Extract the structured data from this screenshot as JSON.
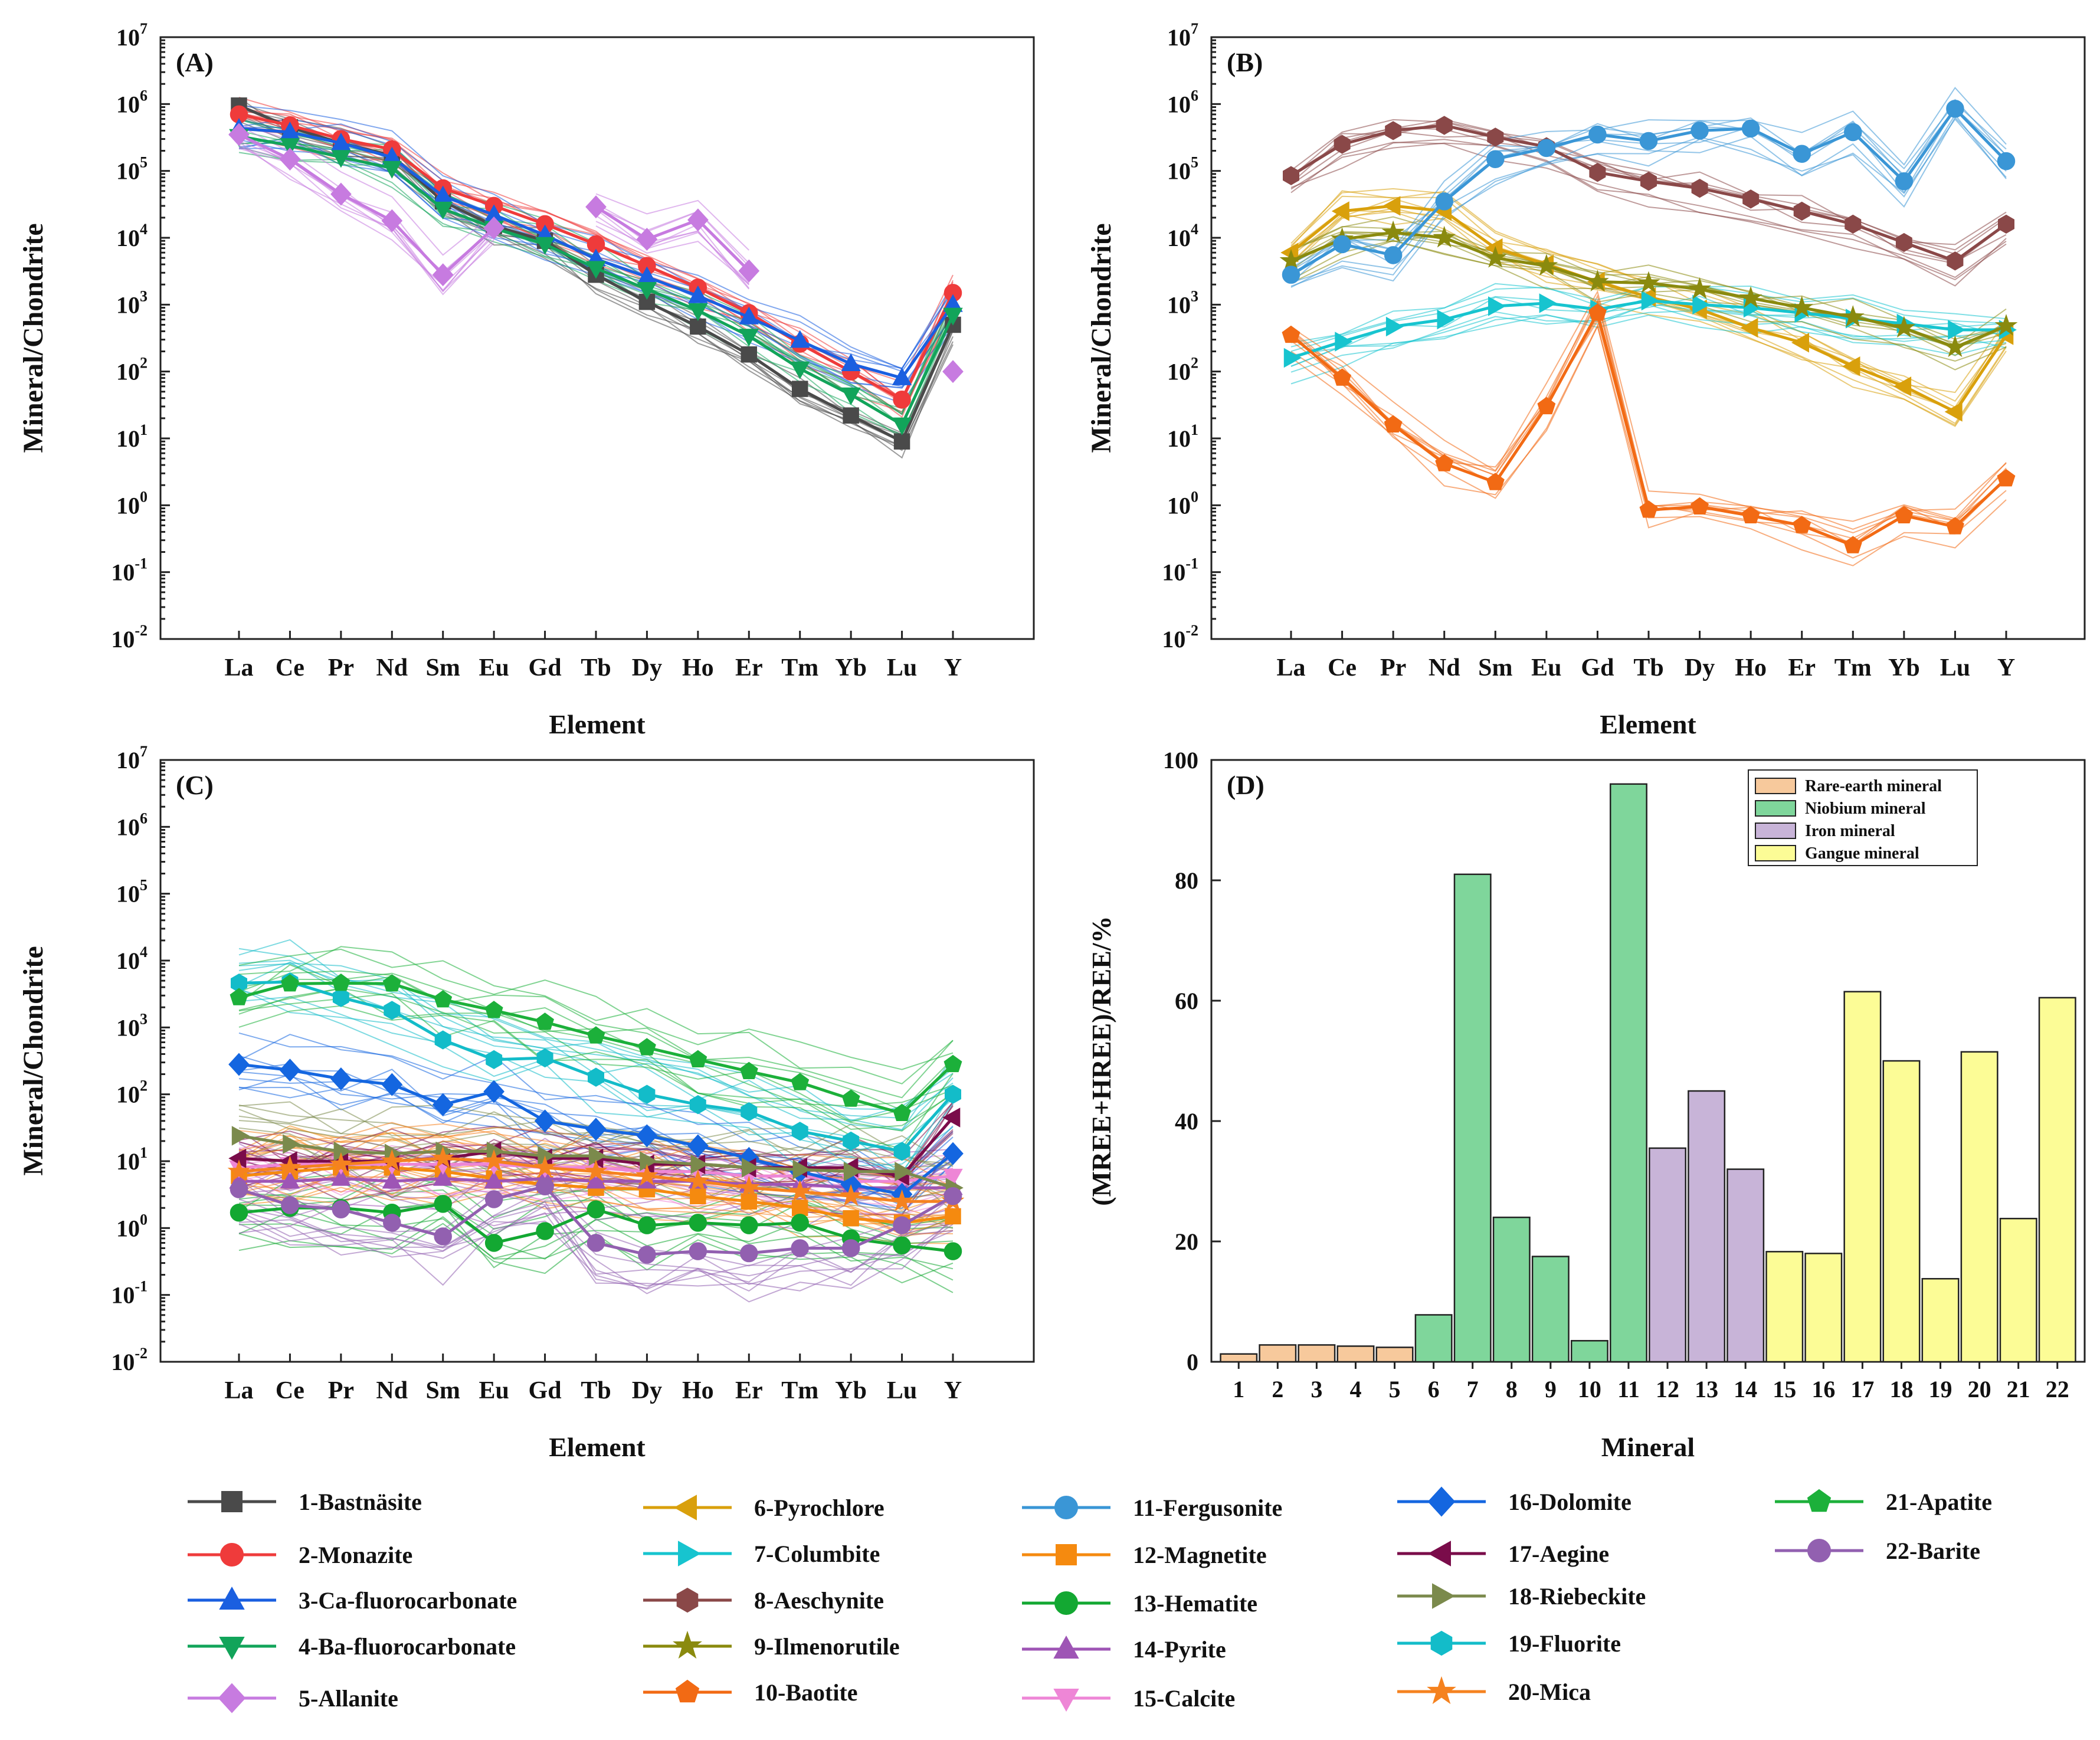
{
  "chart_data": [
    {
      "type": "line",
      "panel": "A",
      "title": "(A)",
      "xlabel": "Element",
      "ylabel": "Mineral/Chondrite",
      "yscale": "log",
      "ylim": [
        0.01,
        10000000
      ],
      "yticks": [
        {
          "b": "10",
          "e": "7"
        },
        {
          "b": "10",
          "e": "6"
        },
        {
          "b": "10",
          "e": "5"
        },
        {
          "b": "10",
          "e": "4"
        },
        {
          "b": "10",
          "e": "3"
        },
        {
          "b": "10",
          "e": "2"
        },
        {
          "b": "10",
          "e": "1"
        },
        {
          "b": "10",
          "e": "0"
        },
        {
          "b": "10",
          "e": "-1"
        },
        {
          "b": "10",
          "e": "-2"
        }
      ],
      "categories": [
        "La",
        "Ce",
        "Pr",
        "Nd",
        "Sm",
        "Eu",
        "Gd",
        "Tb",
        "Dy",
        "Ho",
        "Er",
        "Tm",
        "Yb",
        "Lu",
        "Y"
      ],
      "series": [
        {
          "id": 1,
          "values": [
            950000,
            450000,
            260000,
            170000,
            35000,
            15000,
            9000,
            2800,
            1100,
            470,
            180,
            55,
            22,
            9,
            500
          ]
        },
        {
          "id": 2,
          "values": [
            700000,
            480000,
            300000,
            210000,
            55000,
            30000,
            16000,
            8000,
            3800,
            1800,
            750,
            260,
            100,
            38,
            1500
          ]
        },
        {
          "id": 3,
          "values": [
            430000,
            380000,
            260000,
            160000,
            42000,
            22000,
            11000,
            4800,
            2600,
            1350,
            650,
            290,
            130,
            80,
            1000
          ]
        },
        {
          "id": 4,
          "values": [
            330000,
            240000,
            160000,
            110000,
            27000,
            14000,
            8000,
            3500,
            1700,
            820,
            340,
            110,
            45,
            16,
            700
          ]
        },
        {
          "id": 5,
          "values": [
            350000,
            150000,
            45000,
            18000,
            2800,
            14000,
            null,
            29000,
            9500,
            18500,
            3200,
            null,
            null,
            null,
            100
          ]
        }
      ]
    },
    {
      "type": "line",
      "panel": "B",
      "title": "(B)",
      "xlabel": "Element",
      "ylabel": "Mineral/Chondrite",
      "yscale": "log",
      "ylim": [
        0.01,
        10000000
      ],
      "yticks": [
        {
          "b": "10",
          "e": "7"
        },
        {
          "b": "10",
          "e": "6"
        },
        {
          "b": "10",
          "e": "5"
        },
        {
          "b": "10",
          "e": "4"
        },
        {
          "b": "10",
          "e": "3"
        },
        {
          "b": "10",
          "e": "2"
        },
        {
          "b": "10",
          "e": "1"
        },
        {
          "b": "10",
          "e": "0"
        },
        {
          "b": "10",
          "e": "-1"
        },
        {
          "b": "10",
          "e": "-2"
        }
      ],
      "categories": [
        "La",
        "Ce",
        "Pr",
        "Nd",
        "Sm",
        "Eu",
        "Gd",
        "Tb",
        "Dy",
        "Ho",
        "Er",
        "Tm",
        "Yb",
        "Lu",
        "Y"
      ],
      "series": [
        {
          "id": 6,
          "values": [
            6000,
            25000,
            30000,
            25000,
            7000,
            4000,
            2200,
            1300,
            850,
            450,
            270,
            120,
            60,
            25,
            350
          ]
        },
        {
          "id": 7,
          "values": [
            160,
            280,
            470,
            600,
            950,
            1050,
            850,
            1150,
            1000,
            900,
            750,
            620,
            520,
            420,
            420
          ]
        },
        {
          "id": 8,
          "values": [
            85000,
            250000,
            400000,
            480000,
            320000,
            230000,
            95000,
            70000,
            55000,
            38000,
            25000,
            16000,
            8500,
            4500,
            16000
          ]
        },
        {
          "id": 9,
          "values": [
            4500,
            9500,
            12000,
            10000,
            5000,
            3800,
            2200,
            2100,
            1700,
            1250,
            900,
            650,
            450,
            230,
            480
          ]
        },
        {
          "id": 10,
          "values": [
            350,
            80,
            16,
            4.2,
            2.2,
            30,
            750,
            0.85,
            0.95,
            0.7,
            0.5,
            0.25,
            0.7,
            0.48,
            2.5
          ]
        },
        {
          "id": 11,
          "values": [
            2800,
            8000,
            5500,
            35000,
            150000,
            220000,
            350000,
            280000,
            400000,
            430000,
            180000,
            380000,
            70000,
            850000,
            140000
          ]
        }
      ]
    },
    {
      "type": "line",
      "panel": "C",
      "title": "(C)",
      "xlabel": "Element",
      "ylabel": "Mineral/Chondrite",
      "yscale": "log",
      "ylim": [
        0.01,
        10000000
      ],
      "yticks": [
        {
          "b": "10",
          "e": "7"
        },
        {
          "b": "10",
          "e": "6"
        },
        {
          "b": "10",
          "e": "5"
        },
        {
          "b": "10",
          "e": "4"
        },
        {
          "b": "10",
          "e": "3"
        },
        {
          "b": "10",
          "e": "2"
        },
        {
          "b": "10",
          "e": "1"
        },
        {
          "b": "10",
          "e": "0"
        },
        {
          "b": "10",
          "e": "-1"
        },
        {
          "b": "10",
          "e": "-2"
        }
      ],
      "categories": [
        "La",
        "Ce",
        "Pr",
        "Nd",
        "Sm",
        "Eu",
        "Gd",
        "Tb",
        "Dy",
        "Ho",
        "Er",
        "Tm",
        "Yb",
        "Lu",
        "Y"
      ],
      "series": [
        {
          "id": 12,
          "values": [
            6,
            7,
            8,
            8,
            7,
            5.5,
            4.5,
            4,
            3.8,
            3,
            2.5,
            2,
            1.4,
            1.2,
            1.5
          ]
        },
        {
          "id": 13,
          "values": [
            1.7,
            2,
            2,
            1.7,
            2.3,
            0.6,
            0.9,
            1.9,
            1.1,
            1.2,
            1.1,
            1.2,
            0.7,
            0.55,
            0.45
          ]
        },
        {
          "id": 14,
          "values": [
            5,
            5,
            5.5,
            5,
            5.5,
            5,
            5.5,
            5,
            5,
            5,
            4.5,
            4.5,
            4,
            4,
            4
          ]
        },
        {
          "id": 15,
          "values": [
            8,
            9,
            9,
            9,
            9,
            9,
            8,
            8,
            7,
            7,
            6,
            6,
            5,
            5,
            6
          ]
        },
        {
          "id": 16,
          "values": [
            280,
            230,
            170,
            140,
            70,
            110,
            40,
            30,
            24,
            17,
            11,
            7,
            4.5,
            3.2,
            13
          ]
        },
        {
          "id": 17,
          "values": [
            11,
            10,
            10,
            10,
            11,
            14,
            11,
            11,
            9,
            9,
            8,
            8,
            8,
            6,
            45
          ]
        },
        {
          "id": 18,
          "values": [
            24,
            18,
            14,
            13,
            14,
            14,
            12,
            12,
            10,
            9,
            8,
            7.5,
            7,
            7,
            4
          ]
        },
        {
          "id": 19,
          "values": [
            4600,
            4800,
            2800,
            1800,
            650,
            330,
            350,
            180,
            100,
            70,
            55,
            28,
            20,
            14,
            100
          ]
        },
        {
          "id": 20,
          "values": [
            7,
            8,
            9,
            10,
            11,
            10,
            8,
            7,
            6,
            5,
            4,
            3.5,
            3,
            2.5,
            2.5
          ]
        },
        {
          "id": 21,
          "values": [
            2800,
            4500,
            4600,
            4500,
            2600,
            1800,
            1200,
            750,
            500,
            330,
            220,
            150,
            85,
            52,
            280
          ]
        },
        {
          "id": 22,
          "values": [
            3.8,
            2.2,
            1.9,
            1.2,
            0.75,
            2.7,
            4.2,
            0.6,
            0.4,
            0.45,
            0.42,
            0.5,
            0.5,
            1.1,
            3
          ]
        }
      ]
    },
    {
      "type": "bar",
      "panel": "D",
      "title": "(D)",
      "xlabel": "Mineral",
      "ylabel": "(MREE+HREE)/REE/%",
      "ylim": [
        0,
        100
      ],
      "yticks": [
        0,
        20,
        40,
        60,
        80,
        100
      ],
      "categories": [
        "1",
        "2",
        "3",
        "4",
        "5",
        "6",
        "7",
        "8",
        "9",
        "10",
        "11",
        "12",
        "13",
        "14",
        "15",
        "16",
        "17",
        "18",
        "19",
        "20",
        "21",
        "22"
      ],
      "values": [
        1.3,
        2.8,
        2.8,
        2.6,
        2.4,
        7.8,
        81,
        24,
        17.5,
        3.5,
        96,
        35.5,
        45,
        32,
        18.3,
        18,
        61.5,
        50,
        13.8,
        51.5,
        23.8,
        60.5
      ],
      "groups": [
        "rare",
        "rare",
        "rare",
        "rare",
        "rare",
        "niobium",
        "niobium",
        "niobium",
        "niobium",
        "niobium",
        "niobium",
        "iron",
        "iron",
        "iron",
        "gangue",
        "gangue",
        "gangue",
        "gangue",
        "gangue",
        "gangue",
        "gangue",
        "gangue"
      ],
      "legend": [
        {
          "key": "rare",
          "label": "Rare-earth mineral",
          "color": "#f7c99c"
        },
        {
          "key": "niobium",
          "label": "Niobium mineral",
          "color": "#7fd69b"
        },
        {
          "key": "iron",
          "label": "Iron mineral",
          "color": "#c8b4d8"
        },
        {
          "key": "gangue",
          "label": "Gangue mineral",
          "color": "#fcfc96"
        }
      ]
    }
  ],
  "legend": [
    {
      "id": 1,
      "label": "1-Bastnäsite",
      "color": "#4a4a4a",
      "marker": "square"
    },
    {
      "id": 2,
      "label": "2-Monazite",
      "color": "#ef3b3b",
      "marker": "circle"
    },
    {
      "id": 3,
      "label": "3-Ca-fluorocarbonate",
      "color": "#1a5fe0",
      "marker": "triangle-up"
    },
    {
      "id": 4,
      "label": "4-Ba-fluorocarbonate",
      "color": "#12a45a",
      "marker": "triangle-down"
    },
    {
      "id": 5,
      "label": "5-Allanite",
      "color": "#c77be0",
      "marker": "diamond"
    },
    {
      "id": 6,
      "label": "6-Pyrochlore",
      "color": "#d9a00c",
      "marker": "triangle-left"
    },
    {
      "id": 7,
      "label": "7-Columbite",
      "color": "#17c4cf",
      "marker": "triangle-right"
    },
    {
      "id": 8,
      "label": "8-Aeschynite",
      "color": "#8a4848",
      "marker": "hexagon"
    },
    {
      "id": 9,
      "label": "9-Ilmenorutile",
      "color": "#8a8a0e",
      "marker": "star"
    },
    {
      "id": 10,
      "label": "10-Baotite",
      "color": "#f26a14",
      "marker": "pentagon"
    },
    {
      "id": 11,
      "label": "11-Fergusonite",
      "color": "#3a96d6",
      "marker": "circle"
    },
    {
      "id": 12,
      "label": "12-Magnetite",
      "color": "#f58a0f",
      "marker": "square"
    },
    {
      "id": 13,
      "label": "13-Hematite",
      "color": "#13a832",
      "marker": "circle"
    },
    {
      "id": 14,
      "label": "14-Pyrite",
      "color": "#9e55b5",
      "marker": "triangle-up"
    },
    {
      "id": 15,
      "label": "15-Calcite",
      "color": "#ee86d6",
      "marker": "triangle-down"
    },
    {
      "id": 16,
      "label": "16-Dolomite",
      "color": "#1466e0",
      "marker": "diamond"
    },
    {
      "id": 17,
      "label": "17-Aegine",
      "color": "#7a0c4a",
      "marker": "triangle-left"
    },
    {
      "id": 18,
      "label": "18-Riebeckite",
      "color": "#7b8a4c",
      "marker": "triangle-right"
    },
    {
      "id": 19,
      "label": "19-Fluorite",
      "color": "#13bcc9",
      "marker": "hexagon"
    },
    {
      "id": 20,
      "label": "20-Mica",
      "color": "#f5821f",
      "marker": "star"
    },
    {
      "id": 21,
      "label": "21-Apatite",
      "color": "#1cb03a",
      "marker": "pentagon"
    },
    {
      "id": 22,
      "label": "22-Barite",
      "color": "#9260b0",
      "marker": "circle"
    }
  ]
}
